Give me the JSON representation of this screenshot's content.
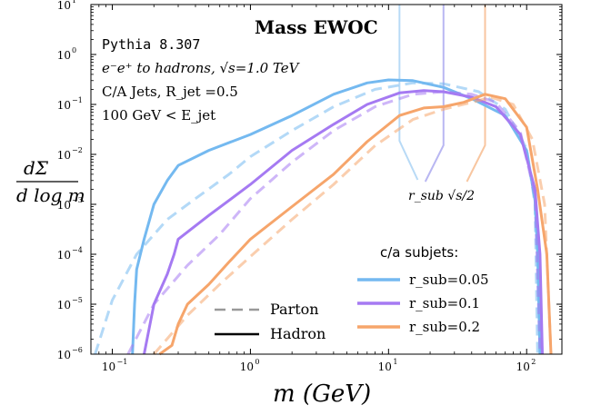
{
  "chart_data": {
    "type": "line",
    "title": "Mass EWOC",
    "xlabel": "m (GeV)",
    "ylabel": "dΣ / d log m",
    "xscale": "log",
    "yscale": "log",
    "xlim": [
      0.07,
      180
    ],
    "ylim": [
      1e-06,
      10
    ],
    "grid": false,
    "x_ticks": [
      {
        "value": 0.1,
        "base": "10",
        "exp": "−1"
      },
      {
        "value": 1,
        "base": "10",
        "exp": "0"
      },
      {
        "value": 10,
        "base": "10",
        "exp": "1"
      },
      {
        "value": 100,
        "base": "10",
        "exp": "2"
      }
    ],
    "y_ticks": [
      {
        "value": 1e-06,
        "base": "10",
        "exp": "−6"
      },
      {
        "value": 1e-05,
        "base": "10",
        "exp": "−5"
      },
      {
        "value": 0.0001,
        "base": "10",
        "exp": "−4"
      },
      {
        "value": 0.001,
        "base": "10",
        "exp": "−3"
      },
      {
        "value": 0.01,
        "base": "10",
        "exp": "−2"
      },
      {
        "value": 0.1,
        "base": "10",
        "exp": "−1"
      },
      {
        "value": 1,
        "base": "10",
        "exp": "0"
      },
      {
        "value": 10,
        "base": "10",
        "exp": "1"
      }
    ],
    "info_lines": {
      "generator": "Pythia 8.307",
      "process": "e⁻e⁺ to hadrons, √s=1.0 TeV",
      "jets": "C/A Jets, R_jet =0.5",
      "energy_cut": "100 GeV < E_jet"
    },
    "legend_title": "c/a subjets:",
    "legend_style": [
      {
        "name": "Parton",
        "linestyle": "dashed"
      },
      {
        "name": "Hadron",
        "linestyle": "solid"
      }
    ],
    "annotation": "r_sub √s/2",
    "annotation_markers": [
      {
        "x": 25,
        "color": "#b9b7f2"
      },
      {
        "x": 50,
        "color": "#f8c6a0"
      }
    ],
    "series": [
      {
        "name": "r_sub=0.05",
        "color": "#74b9f0",
        "hadron": [
          [
            0.14,
            1e-06
          ],
          [
            0.145,
            1e-05
          ],
          [
            0.15,
            5e-05
          ],
          [
            0.17,
            0.0002
          ],
          [
            0.2,
            0.001
          ],
          [
            0.25,
            0.003
          ],
          [
            0.3,
            0.006
          ],
          [
            0.5,
            0.012
          ],
          [
            1,
            0.025
          ],
          [
            2,
            0.06
          ],
          [
            4,
            0.16
          ],
          [
            7,
            0.27
          ],
          [
            10,
            0.31
          ],
          [
            15,
            0.3
          ],
          [
            25,
            0.22
          ],
          [
            40,
            0.13
          ],
          [
            70,
            0.06
          ],
          [
            100,
            0.012
          ],
          [
            115,
            0.0012
          ],
          [
            120,
            0.0001
          ],
          [
            125,
            1e-06
          ]
        ],
        "parton": [
          [
            0.075,
            1e-06
          ],
          [
            0.1,
            1.2e-05
          ],
          [
            0.15,
            0.0001
          ],
          [
            0.25,
            0.0005
          ],
          [
            0.4,
            0.0013
          ],
          [
            0.7,
            0.004
          ],
          [
            1,
            0.009
          ],
          [
            2,
            0.03
          ],
          [
            4,
            0.09
          ],
          [
            8,
            0.2
          ],
          [
            15,
            0.27
          ],
          [
            25,
            0.26
          ],
          [
            45,
            0.18
          ],
          [
            70,
            0.08
          ],
          [
            100,
            0.013
          ],
          [
            115,
            0.001
          ],
          [
            120,
            1e-06
          ]
        ]
      },
      {
        "name": "r_sub=0.1",
        "color": "#a57af2",
        "hadron": [
          [
            0.17,
            1e-06
          ],
          [
            0.2,
            1e-05
          ],
          [
            0.25,
            4e-05
          ],
          [
            0.28,
            0.0001
          ],
          [
            0.3,
            0.0002
          ],
          [
            0.5,
            0.0006
          ],
          [
            1,
            0.0025
          ],
          [
            2,
            0.012
          ],
          [
            4,
            0.04
          ],
          [
            7,
            0.1
          ],
          [
            12,
            0.17
          ],
          [
            18,
            0.19
          ],
          [
            25,
            0.18
          ],
          [
            40,
            0.14
          ],
          [
            60,
            0.09
          ],
          [
            90,
            0.025
          ],
          [
            115,
            0.002
          ],
          [
            125,
            0.0001
          ],
          [
            130,
            1e-06
          ]
        ],
        "parton": [
          [
            0.13,
            1e-06
          ],
          [
            0.2,
            1e-05
          ],
          [
            0.35,
            6e-05
          ],
          [
            0.6,
            0.00025
          ],
          [
            1,
            0.0013
          ],
          [
            2,
            0.007
          ],
          [
            4,
            0.03
          ],
          [
            8,
            0.09
          ],
          [
            15,
            0.16
          ],
          [
            25,
            0.18
          ],
          [
            40,
            0.16
          ],
          [
            60,
            0.11
          ],
          [
            90,
            0.028
          ],
          [
            115,
            0.0015
          ],
          [
            125,
            1e-06
          ]
        ]
      },
      {
        "name": "r_sub=0.2",
        "color": "#f6a56b",
        "hadron": [
          [
            0.22,
            1e-06
          ],
          [
            0.27,
            1.5e-06
          ],
          [
            0.3,
            4e-06
          ],
          [
            0.35,
            1e-05
          ],
          [
            0.5,
            2.5e-05
          ],
          [
            0.7,
            7e-05
          ],
          [
            1,
            0.0002
          ],
          [
            2,
            0.0009
          ],
          [
            4,
            0.004
          ],
          [
            7,
            0.018
          ],
          [
            12,
            0.06
          ],
          [
            18,
            0.085
          ],
          [
            25,
            0.09
          ],
          [
            35,
            0.11
          ],
          [
            50,
            0.16
          ],
          [
            70,
            0.13
          ],
          [
            100,
            0.035
          ],
          [
            120,
            0.002
          ],
          [
            140,
            0.0001
          ],
          [
            150,
            1e-06
          ]
        ],
        "parton": [
          [
            0.2,
            1e-06
          ],
          [
            0.35,
            6e-06
          ],
          [
            0.6,
            2.5e-05
          ],
          [
            1,
            9e-05
          ],
          [
            2,
            0.0005
          ],
          [
            4,
            0.0025
          ],
          [
            8,
            0.015
          ],
          [
            15,
            0.05
          ],
          [
            25,
            0.08
          ],
          [
            40,
            0.11
          ],
          [
            55,
            0.14
          ],
          [
            80,
            0.1
          ],
          [
            110,
            0.02
          ],
          [
            135,
            0.001
          ],
          [
            150,
            1e-06
          ]
        ]
      }
    ]
  }
}
